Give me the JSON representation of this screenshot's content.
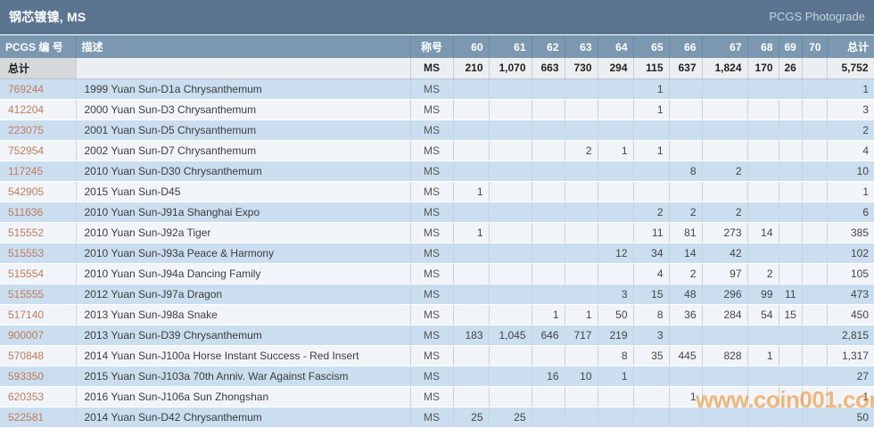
{
  "title_bar": {
    "title": "钢芯镀镍, MS",
    "photograde_link": "PCGS Photograde"
  },
  "watermark": "www.coin001.com",
  "colors": {
    "titlebar_bg": "#5b7490",
    "header_bg": "#7b98b0",
    "row_blue": "#cadeef",
    "row_lite": "#f1f5f9",
    "link_color": "#c07a5c",
    "watermark_color": "rgba(238,130,20,0.55)"
  },
  "table": {
    "columns": [
      "PCGS 编 号",
      "描述",
      "称号",
      "60",
      "61",
      "62",
      "63",
      "64",
      "65",
      "66",
      "67",
      "68",
      "69",
      "70",
      "总计"
    ],
    "totals": {
      "label": "总计",
      "description": "",
      "designation": "MS",
      "grades": [
        "210",
        "1,070",
        "663",
        "730",
        "294",
        "115",
        "637",
        "1,824",
        "170",
        "26",
        ""
      ],
      "total": "5,752"
    },
    "rows": [
      {
        "pcgs": "769244",
        "desc": "1999 Yuan Sun-D1a Chrysanthemum",
        "designation": "MS",
        "grades": [
          "",
          "",
          "",
          "",
          "",
          "1",
          "",
          "",
          "",
          "",
          ""
        ],
        "total": "1"
      },
      {
        "pcgs": "412204",
        "desc": "2000 Yuan Sun-D3 Chrysanthemum",
        "designation": "MS",
        "grades": [
          "",
          "",
          "",
          "",
          "",
          "1",
          "",
          "",
          "",
          "",
          ""
        ],
        "total": "3"
      },
      {
        "pcgs": "223075",
        "desc": "2001 Yuan Sun-D5 Chrysanthemum",
        "designation": "MS",
        "grades": [
          "",
          "",
          "",
          "",
          "",
          "",
          "",
          "",
          "",
          "",
          ""
        ],
        "total": "2"
      },
      {
        "pcgs": "752954",
        "desc": "2002 Yuan Sun-D7 Chrysanthemum",
        "designation": "MS",
        "grades": [
          "",
          "",
          "",
          "2",
          "1",
          "1",
          "",
          "",
          "",
          "",
          ""
        ],
        "total": "4"
      },
      {
        "pcgs": "117245",
        "desc": "2010 Yuan Sun-D30 Chrysanthemum",
        "designation": "MS",
        "grades": [
          "",
          "",
          "",
          "",
          "",
          "",
          "8",
          "2",
          "",
          "",
          ""
        ],
        "total": "10"
      },
      {
        "pcgs": "542905",
        "desc": "2015 Yuan Sun-D45",
        "designation": "MS",
        "grades": [
          "1",
          "",
          "",
          "",
          "",
          "",
          "",
          "",
          "",
          "",
          ""
        ],
        "total": "1"
      },
      {
        "pcgs": "511636",
        "desc": "2010 Yuan Sun-J91a Shanghai Expo",
        "designation": "MS",
        "grades": [
          "",
          "",
          "",
          "",
          "",
          "2",
          "2",
          "2",
          "",
          "",
          ""
        ],
        "total": "6"
      },
      {
        "pcgs": "515552",
        "desc": "2010 Yuan Sun-J92a Tiger",
        "designation": "MS",
        "grades": [
          "1",
          "",
          "",
          "",
          "",
          "11",
          "81",
          "273",
          "14",
          "",
          ""
        ],
        "total": "385"
      },
      {
        "pcgs": "515553",
        "desc": "2010 Yuan Sun-J93a Peace & Harmony",
        "designation": "MS",
        "grades": [
          "",
          "",
          "",
          "",
          "12",
          "34",
          "14",
          "42",
          "",
          "",
          ""
        ],
        "total": "102"
      },
      {
        "pcgs": "515554",
        "desc": "2010 Yuan Sun-J94a Dancing Family",
        "designation": "MS",
        "grades": [
          "",
          "",
          "",
          "",
          "",
          "4",
          "2",
          "97",
          "2",
          "",
          ""
        ],
        "total": "105"
      },
      {
        "pcgs": "515555",
        "desc": "2012 Yuan Sun-J97a Dragon",
        "designation": "MS",
        "grades": [
          "",
          "",
          "",
          "",
          "3",
          "15",
          "48",
          "296",
          "99",
          "11",
          ""
        ],
        "total": "473"
      },
      {
        "pcgs": "517140",
        "desc": "2013 Yuan Sun-J98a Snake",
        "designation": "MS",
        "grades": [
          "",
          "",
          "1",
          "1",
          "50",
          "8",
          "36",
          "284",
          "54",
          "15",
          ""
        ],
        "total": "450"
      },
      {
        "pcgs": "900007",
        "desc": "2013 Yuan Sun-D39 Chrysanthemum",
        "designation": "MS",
        "grades": [
          "183",
          "1,045",
          "646",
          "717",
          "219",
          "3",
          "",
          "",
          "",
          "",
          ""
        ],
        "total": "2,815"
      },
      {
        "pcgs": "570848",
        "desc": "2014 Yuan Sun-J100a Horse Instant Success - Red Insert",
        "designation": "MS",
        "grades": [
          "",
          "",
          "",
          "",
          "8",
          "35",
          "445",
          "828",
          "1",
          "",
          ""
        ],
        "total": "1,317"
      },
      {
        "pcgs": "593350",
        "desc": "2015 Yuan Sun-J103a 70th Anniv. War Against Fascism",
        "designation": "MS",
        "grades": [
          "",
          "",
          "16",
          "10",
          "1",
          "",
          "",
          "",
          "",
          "",
          ""
        ],
        "total": "27"
      },
      {
        "pcgs": "620353",
        "desc": "2016 Yuan Sun-J106a Sun Zhongshan",
        "designation": "MS",
        "grades": [
          "",
          "",
          "",
          "",
          "",
          "",
          "1",
          "",
          "",
          "",
          ""
        ],
        "total": "1"
      },
      {
        "pcgs": "522581",
        "desc": "2014 Yuan Sun-D42 Chrysanthemum",
        "designation": "MS",
        "grades": [
          "25",
          "25",
          "",
          "",
          "",
          "",
          "",
          "",
          "",
          "",
          ""
        ],
        "total": "50"
      }
    ]
  }
}
